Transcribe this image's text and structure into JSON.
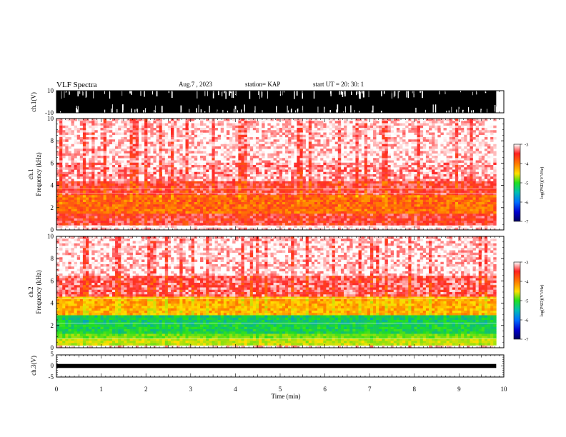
{
  "header": {
    "title": "VLF Spectra",
    "date": "Aug.7 , 2023",
    "station": "station= KAP",
    "start": "start UT = 20: 30: 1"
  },
  "chart_data": [
    {
      "type": "line",
      "panel": "ch1-waveform",
      "ylabel": "ch.1(V)",
      "ylim": [
        -10,
        10
      ],
      "yticks": [
        "10",
        "-10"
      ],
      "note": "waveform saturated, fills most of the range"
    },
    {
      "type": "heatmap",
      "panel": "ch1-spectrogram",
      "ylabel": "ch.1\nFrequency (kHz)",
      "ylim": [
        0,
        10
      ],
      "yticks": [
        "0",
        "2",
        "4",
        "6",
        "8",
        "10"
      ],
      "xlim": [
        0,
        10
      ],
      "data_extent_x": 9.83,
      "colorbar": {
        "label": "log(PSD)(V²/Hz)",
        "range": [
          -7,
          -3
        ],
        "ticks": [
          "-3",
          "-4",
          "-5",
          "-6",
          "-7"
        ]
      },
      "bands": [
        {
          "from": 0.5,
          "to": 1.5,
          "level": -3.4
        },
        {
          "from": 1.5,
          "to": 3.2,
          "level": -3.7
        },
        {
          "from": 3.2,
          "to": 4.3,
          "level": -3.4
        },
        {
          "from": 4.3,
          "to": 6.0,
          "level": -3.15
        },
        {
          "from": 6.0,
          "to": 10.0,
          "level": -3.05
        }
      ],
      "lines_khz": [
        3.7,
        3.3
      ]
    },
    {
      "type": "heatmap",
      "panel": "ch2-spectrogram",
      "ylabel": "ch.2\nFrequency (kHz)",
      "ylim": [
        0,
        10
      ],
      "yticks": [
        "0",
        "2",
        "4",
        "6",
        "8",
        "10"
      ],
      "xlim": [
        0,
        10
      ],
      "data_extent_x": 9.83,
      "colorbar": {
        "label": "log(PSD)(V²/Hz)",
        "range": [
          -7,
          -3
        ],
        "ticks": [
          "-3",
          "-4",
          "-5",
          "-6",
          "-7"
        ]
      },
      "bands": [
        {
          "from": 0.3,
          "to": 0.8,
          "level": -4.4
        },
        {
          "from": 0.8,
          "to": 1.3,
          "level": -4.7
        },
        {
          "from": 1.3,
          "to": 2.0,
          "level": -5.1
        },
        {
          "from": 2.0,
          "to": 3.0,
          "level": -5.2
        },
        {
          "from": 3.0,
          "to": 4.5,
          "level": -4.0
        },
        {
          "from": 4.5,
          "to": 6.5,
          "level": -3.3
        },
        {
          "from": 6.5,
          "to": 10.0,
          "level": -3.05
        }
      ],
      "lines_khz": [
        4.4,
        2.2,
        0.8
      ]
    },
    {
      "type": "line",
      "panel": "ch3-waveform",
      "ylabel": "ch.3(V)",
      "ylim": [
        -5,
        5
      ],
      "yticks": [
        "5",
        "0",
        "-5"
      ],
      "note": "constant thick band near 0 V"
    }
  ],
  "xaxis": {
    "label": "Time (min)",
    "range": [
      0,
      10
    ],
    "ticks": [
      "0",
      "1",
      "2",
      "3",
      "4",
      "5",
      "6",
      "7",
      "8",
      "9",
      "10"
    ]
  },
  "colors": {
    "axis": "#000000",
    "background": "#ffffff"
  }
}
